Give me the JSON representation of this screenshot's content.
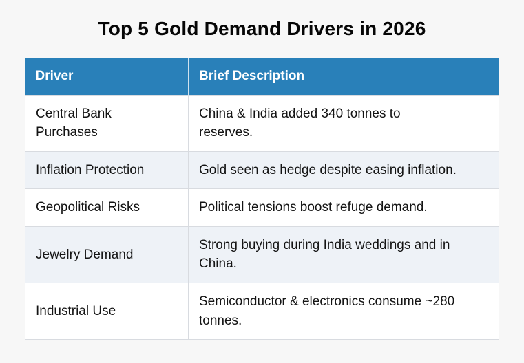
{
  "page": {
    "title": "Top 5 Gold Demand Drivers in 2026",
    "background_color": "#f7f7f7"
  },
  "table": {
    "header_bg_color": "#2980b9",
    "header_text_color": "#ffffff",
    "stripe_color": "#eef2f7",
    "border_color": "#d8dbe0",
    "columns": [
      "Driver",
      "Brief Description"
    ],
    "rows": [
      {
        "driver": "Central Bank Purchases",
        "description": "China & India added 340 tonnes to reserves."
      },
      {
        "driver": "Inflation Protection",
        "description": "Gold seen as hedge despite easing inflation."
      },
      {
        "driver": "Geopolitical Risks",
        "description": "Political tensions boost refuge demand."
      },
      {
        "driver": "Jewelry Demand",
        "description": "Strong buying during India weddings and in China."
      },
      {
        "driver": "Industrial Use",
        "description": "Semiconductor & electronics consume ~280 tonnes."
      }
    ]
  },
  "chart_data": {
    "type": "table",
    "title": "Top 5 Gold Demand Drivers in 2026",
    "columns": [
      "Driver",
      "Brief Description"
    ],
    "rows": [
      [
        "Central Bank Purchases",
        "China & India added 340 tonnes to reserves."
      ],
      [
        "Inflation Protection",
        "Gold seen as hedge despite easing inflation."
      ],
      [
        "Geopolitical Risks",
        "Political tensions boost refuge demand."
      ],
      [
        "Jewelry Demand",
        "Strong buying during India weddings and in China."
      ],
      [
        "Industrial Use",
        "Semiconductor & electronics consume ~280 tonnes."
      ]
    ],
    "layout": {
      "header_bg": "#2980b9",
      "header_text_color": "#ffffff",
      "zebra_striping": true,
      "stripe_bg": "#eef2f7",
      "page_bg": "#f7f7f7",
      "title_position": "top-center"
    }
  }
}
